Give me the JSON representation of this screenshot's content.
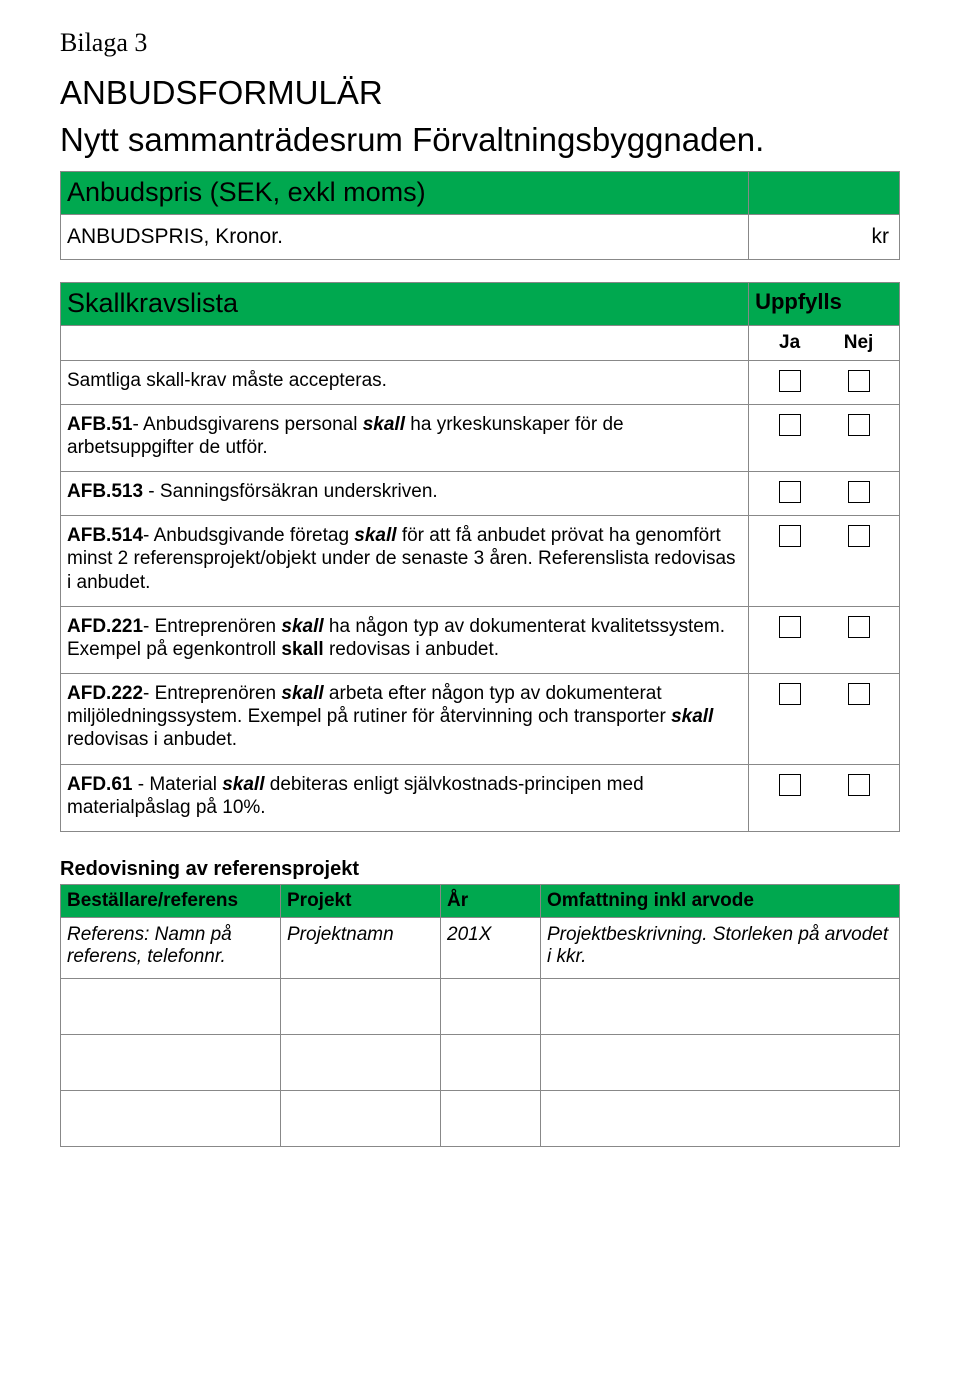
{
  "colors": {
    "green": "#00a84f",
    "border": "#888888",
    "text": "#000000",
    "bg": "#ffffff"
  },
  "header": {
    "bilaga": "Bilaga 3",
    "line1": "ANBUDSFORMULÄR",
    "line2": "Nytt sammanträdesrum Förvaltningsbyggnaden."
  },
  "price": {
    "section_title": "Anbudspris (SEK, exkl moms)",
    "label": "ANBUDSPRIS, Kronor.",
    "unit": "kr"
  },
  "skall": {
    "section_title": "Skallkravslista",
    "uppfylls": "Uppfylls",
    "ja": "Ja",
    "nej": "Nej",
    "rows": [
      {
        "pre": "Samtliga skall-krav måste accepteras.",
        "code": "",
        "skall": "",
        "post": ""
      },
      {
        "pre": "",
        "code": "AFB.51",
        "mid1": "- Anbudsgivarens personal ",
        "skall": "skall",
        "post": " ha yrkeskunskaper för de arbetsuppgifter de utför."
      },
      {
        "pre": "",
        "code": "AFB.513",
        "mid1": " - Sanningsförsäkran underskriven.",
        "skall": "",
        "post": ""
      },
      {
        "pre": "",
        "code": "AFB.514",
        "mid1": "- Anbudsgivande företag ",
        "skall": "skall",
        "post": " för att få anbudet prövat ha genomfört minst 2 referensprojekt/objekt under de senaste 3 åren. Referenslista redovisas i anbudet."
      },
      {
        "pre": "",
        "code": "AFD.221",
        "mid1": "- Entreprenören ",
        "skall": "skall",
        "post": " ha någon typ av dokumenterat kvalitetssystem. Exempel på egenkontroll ",
        "skall2": "skall",
        "post2": " redovisas i anbudet."
      },
      {
        "pre": "",
        "code": "AFD.222",
        "mid1": "- Entreprenören ",
        "skall": "skall",
        "post": " arbeta efter någon typ av dokumenterat miljöledningssystem. Exempel på rutiner för återvinning och transporter ",
        "skall2": "skall",
        "post2": " redovisas i anbudet."
      },
      {
        "pre": "",
        "code": "AFD.61",
        "mid1": " - Material ",
        "skall": "skall",
        "post": " debiteras enligt självkostnads-principen med materialpåslag på 10%."
      }
    ]
  },
  "ref": {
    "title": "Redovisning av referensprojekt",
    "headers": [
      "Beställare/referens",
      "Projekt",
      "År",
      "Omfattning inkl arvode"
    ],
    "row": {
      "a": "Referens: Namn på referens, telefonnr.",
      "b": "Projektnamn",
      "c": "201X",
      "d": "Projektbeskrivning. Storleken på arvodet i kkr."
    }
  }
}
